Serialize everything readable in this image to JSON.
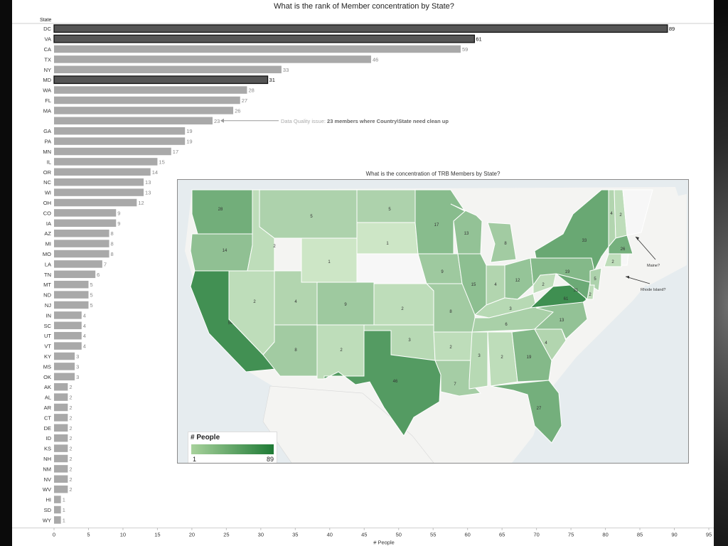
{
  "page": {
    "title": "What is the rank of Member concentration by State?"
  },
  "chart_data": [
    {
      "type": "bar",
      "orientation": "horizontal",
      "title": "What is the rank of Member concentration by State?",
      "category_header": "State",
      "xlabel": "# People",
      "xlim": [
        0,
        95
      ],
      "x_ticks": [
        "0",
        "5",
        "10",
        "15",
        "20",
        "25",
        "30",
        "35",
        "40",
        "45",
        "50",
        "55",
        "60",
        "65",
        "70",
        "75",
        "80",
        "85",
        "90",
        "95"
      ],
      "grid": false,
      "highlight_color": "#555555",
      "bar_color": "#a9a9a9",
      "categories": [
        "DC",
        "VA",
        "CA",
        "TX",
        "NY",
        "MD",
        "WA",
        "FL",
        "MA",
        "",
        "GA",
        "PA",
        "MN",
        "IL",
        "OR",
        "NC",
        "WI",
        "OH",
        "CO",
        "IA",
        "AZ",
        "MI",
        "MO",
        "LA",
        "TN",
        "MT",
        "ND",
        "NJ",
        "IN",
        "SC",
        "UT",
        "VT",
        "KY",
        "MS",
        "OK",
        "AK",
        "AL",
        "AR",
        "CT",
        "DE",
        "ID",
        "KS",
        "NH",
        "NM",
        "NV",
        "WV",
        "HI",
        "SD",
        "WY"
      ],
      "values": [
        89,
        61,
        59,
        46,
        33,
        31,
        28,
        27,
        26,
        23,
        19,
        19,
        17,
        15,
        14,
        13,
        13,
        12,
        9,
        9,
        8,
        8,
        8,
        7,
        6,
        5,
        5,
        5,
        4,
        4,
        4,
        4,
        3,
        3,
        3,
        2,
        2,
        2,
        2,
        2,
        2,
        2,
        2,
        2,
        2,
        2,
        1,
        1,
        1
      ],
      "highlighted": [
        "DC",
        "VA",
        "MD"
      ],
      "annotation": {
        "category_index": 9,
        "prefix": "Data Quality issue: ",
        "text": "23 members where Country\\State need clean up"
      }
    },
    {
      "type": "choropleth",
      "title": "What is the concentration of TRB Members by State?",
      "legend": {
        "title": "# People",
        "min": "1",
        "max": "89",
        "position": "bottom-left"
      },
      "color_range": [
        "#a8d29c",
        "#1e7a35"
      ],
      "states": [
        {
          "state": "WA",
          "value": 28
        },
        {
          "state": "OR",
          "value": 14
        },
        {
          "state": "CA",
          "value": 59
        },
        {
          "state": "ID",
          "value": 2
        },
        {
          "state": "NV",
          "value": 2
        },
        {
          "state": "MT",
          "value": 5
        },
        {
          "state": "WY",
          "value": 1
        },
        {
          "state": "UT",
          "value": 4
        },
        {
          "state": "AZ",
          "value": 8
        },
        {
          "state": "CO",
          "value": 9
        },
        {
          "state": "NM",
          "value": 2
        },
        {
          "state": "ND",
          "value": 5
        },
        {
          "state": "SD",
          "value": 1
        },
        {
          "state": "KS",
          "value": 2
        },
        {
          "state": "OK",
          "value": 3
        },
        {
          "state": "TX",
          "value": 46
        },
        {
          "state": "MN",
          "value": 17
        },
        {
          "state": "IA",
          "value": 9
        },
        {
          "state": "MO",
          "value": 8
        },
        {
          "state": "AR",
          "value": 2
        },
        {
          "state": "LA",
          "value": 7
        },
        {
          "state": "WI",
          "value": 13
        },
        {
          "state": "IL",
          "value": 15
        },
        {
          "state": "MI",
          "value": 8
        },
        {
          "state": "IN",
          "value": 4
        },
        {
          "state": "OH",
          "value": 12
        },
        {
          "state": "KY",
          "value": 3
        },
        {
          "state": "TN",
          "value": 6
        },
        {
          "state": "MS",
          "value": 3
        },
        {
          "state": "AL",
          "value": 2
        },
        {
          "state": "GA",
          "value": 19
        },
        {
          "state": "FL",
          "value": 27
        },
        {
          "state": "SC",
          "value": 4
        },
        {
          "state": "NC",
          "value": 13
        },
        {
          "state": "VA",
          "value": 61
        },
        {
          "state": "WV",
          "value": 2
        },
        {
          "state": "PA",
          "value": 19
        },
        {
          "state": "NY",
          "value": 33
        },
        {
          "state": "VT",
          "value": 4
        },
        {
          "state": "NH",
          "value": 2
        },
        {
          "state": "MA",
          "value": 26
        },
        {
          "state": "CT",
          "value": 2
        },
        {
          "state": "NJ",
          "value": 5
        },
        {
          "state": "DE",
          "value": 2
        },
        {
          "state": "MD",
          "value": 31
        }
      ],
      "callouts": [
        "Maine?",
        "Rhode Island?"
      ]
    }
  ]
}
